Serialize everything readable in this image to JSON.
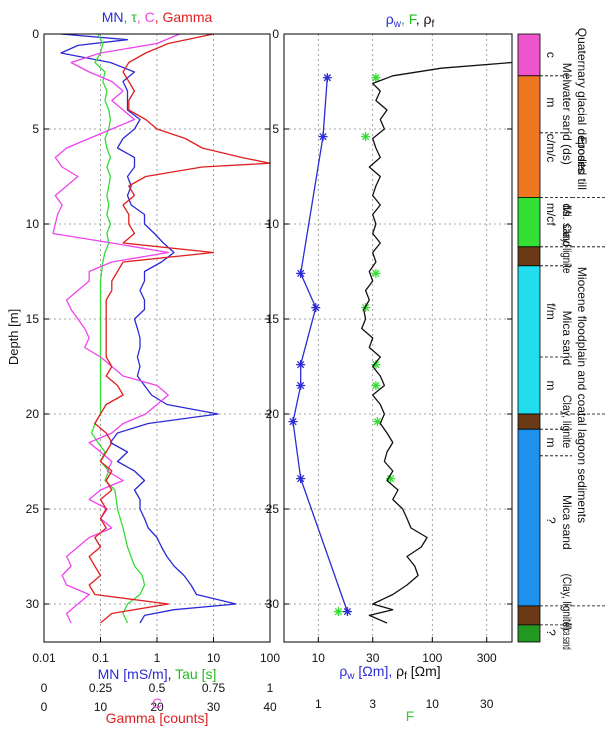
{
  "colors": {
    "blue": "#2b2bd6",
    "green": "#33dd33",
    "magenta": "#ee44ee",
    "red": "#e02020",
    "black": "#111111",
    "grid": "#8a8a8a",
    "dark_blue_text": "#2222aa"
  },
  "chart_data": [
    {
      "type": "line",
      "panel": "left",
      "title_parts": [
        "MN",
        ", τ",
        ", C",
        ", Gamma"
      ],
      "ylabel": "Depth [m]",
      "ylim": [
        0,
        32
      ],
      "y_ticks": [
        0,
        5,
        10,
        15,
        20,
        25,
        30
      ],
      "x_axes": [
        {
          "label_parts": [
            "MN [mS/m]",
            ", ",
            "Tau [s]"
          ],
          "scale": "log",
          "range": [
            0.01,
            100
          ],
          "ticks": [
            "0.01",
            "0.1",
            "1",
            "10",
            "100"
          ]
        },
        {
          "label": "C",
          "scale": "linear",
          "range": [
            0,
            1
          ],
          "ticks": [
            "0",
            "0.25",
            "0.5",
            "0.75",
            "1"
          ]
        },
        {
          "label": "Gamma [counts]",
          "scale": "linear",
          "range": [
            0,
            40
          ],
          "ticks": [
            "0",
            "10",
            "20",
            "30",
            "40"
          ]
        }
      ],
      "grid": true,
      "series": [
        {
          "key": "MN",
          "axis": 0,
          "depth": [
            0,
            0.3,
            0.6,
            1.0,
            1.5,
            2.0,
            2.5,
            3.0,
            3.5,
            4.0,
            4.5,
            5.0,
            5.5,
            6.0,
            6.5,
            7.0,
            7.5,
            8.0,
            8.5,
            9.0,
            9.5,
            10.0,
            10.5,
            11.0,
            11.5,
            12.0,
            12.5,
            13.0,
            13.5,
            14.0,
            14.5,
            15.0,
            15.5,
            16.0,
            16.5,
            17.0,
            17.5,
            18.0,
            18.5,
            19.0,
            19.5,
            20.0,
            20.5,
            21.0,
            21.5,
            22.0,
            22.5,
            23.0,
            23.5,
            24.0,
            24.5,
            25.0,
            25.5,
            26.0,
            26.5,
            27.0,
            27.5,
            28.0,
            28.5,
            29.0,
            29.5,
            30.0,
            30.3,
            30.6,
            31.0
          ],
          "values": [
            0.02,
            0.3,
            0.04,
            0.02,
            0.15,
            0.4,
            0.25,
            0.3,
            0.3,
            0.3,
            0.5,
            0.4,
            0.25,
            0.2,
            0.4,
            0.4,
            0.3,
            0.35,
            0.3,
            0.35,
            0.6,
            0.6,
            0.9,
            1.3,
            2.0,
            1.2,
            0.6,
            0.6,
            0.5,
            0.6,
            0.6,
            0.4,
            0.45,
            0.5,
            0.5,
            0.45,
            0.5,
            0.45,
            0.6,
            0.8,
            1.5,
            12.0,
            0.7,
            0.2,
            0.15,
            0.3,
            0.2,
            0.4,
            0.6,
            0.4,
            0.5,
            0.5,
            0.6,
            0.7,
            1.0,
            1.2,
            1.5,
            2.0,
            3.0,
            4.0,
            5.0,
            25.0,
            2.0,
            0.6,
            0.5
          ]
        },
        {
          "key": "Tau",
          "axis": 0,
          "depth": [
            0,
            0.5,
            1.0,
            1.5,
            2.0,
            2.5,
            3.0,
            3.5,
            4.0,
            4.5,
            5.0,
            5.5,
            6.0,
            6.5,
            7.0,
            7.5,
            8.0,
            8.5,
            9.0,
            9.5,
            10.0,
            10.5,
            11.0,
            11.5,
            12.0,
            13.0,
            14.0,
            15.0,
            16.0,
            17.0,
            18.0,
            19.0,
            20.0,
            20.5,
            21.0,
            21.5,
            22.0,
            22.5,
            23.0,
            23.5,
            24.0,
            25.0,
            26.0,
            27.0,
            28.0,
            28.5,
            29.0,
            29.5,
            30.0,
            30.5,
            31.0
          ],
          "values": [
            0.09,
            0.11,
            0.1,
            0.08,
            0.12,
            0.11,
            0.13,
            0.12,
            0.14,
            0.15,
            0.14,
            0.12,
            0.13,
            0.15,
            0.13,
            0.15,
            0.14,
            0.13,
            0.14,
            0.13,
            0.15,
            0.13,
            0.14,
            0.12,
            0.11,
            0.1,
            0.1,
            0.1,
            0.1,
            0.1,
            0.1,
            0.1,
            0.1,
            0.08,
            0.07,
            0.09,
            0.12,
            0.1,
            0.14,
            0.12,
            0.18,
            0.2,
            0.25,
            0.3,
            0.4,
            0.55,
            0.6,
            0.5,
            0.3,
            0.25,
            0.3
          ]
        },
        {
          "key": "C",
          "axis": 1,
          "depth": [
            0,
            0.5,
            1.0,
            1.5,
            2.0,
            2.5,
            3.0,
            3.5,
            4.0,
            4.5,
            5.0,
            5.5,
            6.0,
            6.5,
            7.0,
            7.5,
            8.0,
            8.5,
            9.0,
            9.5,
            10.0,
            10.5,
            11.0,
            11.5,
            12.0,
            12.5,
            13.0,
            13.5,
            14.0,
            14.5,
            15.0,
            15.5,
            16.0,
            16.5,
            17.0,
            17.5,
            18.0,
            18.5,
            19.0,
            19.5,
            20.0,
            20.5,
            21.0,
            21.5,
            22.0,
            22.5,
            23.0,
            23.5,
            24.0,
            24.5,
            25.0,
            25.5,
            26.0,
            26.5,
            27.0,
            27.5,
            28.0,
            28.5,
            29.0,
            29.5,
            30.0,
            30.5,
            31.0
          ],
          "values": [
            0.6,
            0.5,
            0.25,
            0.12,
            0.2,
            0.3,
            0.35,
            0.3,
            0.35,
            0.4,
            0.3,
            0.2,
            0.1,
            0.05,
            0.08,
            0.15,
            0.1,
            0.05,
            0.08,
            0.06,
            0.05,
            0.04,
            0.3,
            0.55,
            0.3,
            0.2,
            0.2,
            0.15,
            0.1,
            0.12,
            0.15,
            0.18,
            0.2,
            0.18,
            0.25,
            0.3,
            0.35,
            0.5,
            0.55,
            0.5,
            0.45,
            0.35,
            0.3,
            0.2,
            0.25,
            0.3,
            0.28,
            0.35,
            0.25,
            0.2,
            0.28,
            0.25,
            0.3,
            0.2,
            0.15,
            0.1,
            0.12,
            0.08,
            0.1,
            0.2,
            0.15,
            0.1,
            0.12
          ]
        },
        {
          "key": "Gamma",
          "axis": 2,
          "depth": [
            0,
            0.5,
            1.0,
            1.5,
            2.0,
            2.5,
            3.0,
            3.5,
            4.0,
            4.5,
            5.0,
            5.5,
            6.0,
            6.5,
            6.8,
            7.0,
            7.5,
            8.0,
            8.5,
            9.0,
            9.5,
            10.0,
            10.5,
            11.0,
            11.5,
            12.0,
            12.5,
            13.0,
            13.5,
            14.0,
            14.5,
            15.0,
            15.5,
            16.0,
            16.5,
            17.0,
            17.5,
            18.0,
            18.5,
            19.0,
            19.5,
            20.0,
            20.5,
            21.0,
            21.5,
            22.0,
            22.5,
            23.0,
            23.5,
            24.0,
            24.5,
            25.0,
            25.5,
            26.0,
            26.5,
            27.0,
            27.5,
            28.0,
            28.5,
            29.0,
            29.5,
            30.0,
            30.5,
            31.0
          ],
          "values": [
            30,
            22,
            18,
            15,
            14,
            15,
            16,
            15,
            15,
            18,
            20,
            25,
            28,
            35,
            40,
            28,
            18,
            15,
            16,
            14,
            15,
            15,
            16,
            14,
            30,
            14,
            13,
            12,
            12,
            11,
            11,
            11,
            11,
            11,
            11,
            11,
            12,
            11,
            13,
            14,
            11,
            10,
            9,
            11,
            12,
            11,
            10,
            12,
            11,
            12,
            10,
            11,
            10,
            11,
            9,
            10,
            8,
            9,
            10,
            8,
            9,
            22,
            12,
            10
          ]
        }
      ]
    },
    {
      "type": "line",
      "panel": "right",
      "title_parts": [
        "ρ",
        "w",
        ", F",
        ", ρ",
        "f"
      ],
      "ylim": [
        0,
        32
      ],
      "y_ticks": [
        0,
        5,
        10,
        15,
        20,
        25,
        30
      ],
      "x_axes": [
        {
          "label_parts": [
            "ρ",
            "w",
            " [Ωm],  ",
            "ρ",
            "f",
            " [Ωm]"
          ],
          "scale": "log",
          "range": [
            5,
            500
          ],
          "ticks": [
            "10",
            "30",
            "100",
            "300"
          ]
        },
        {
          "label": "F",
          "scale": "log",
          "range": [
            0.5,
            50
          ],
          "ticks": [
            "1",
            "3",
            "10",
            "30"
          ]
        }
      ],
      "grid": true,
      "series": [
        {
          "key": "rho_w",
          "axis": 0,
          "marker": "asterisk",
          "depth": [
            2.3,
            5.4,
            12.6,
            14.4,
            17.4,
            18.5,
            20.4,
            23.4,
            30.4
          ],
          "values": [
            12,
            11,
            7,
            9.5,
            7,
            7,
            6,
            7,
            18
          ]
        },
        {
          "key": "F",
          "axis": 1,
          "marker": "asterisk",
          "depth": [
            2.3,
            5.4,
            12.6,
            14.4,
            17.4,
            18.5,
            20.4,
            23.4,
            30.4
          ],
          "values": [
            3.2,
            2.6,
            3.2,
            2.6,
            3.2,
            3.2,
            3.3,
            4.3,
            1.5
          ]
        },
        {
          "key": "rho_f",
          "axis": 0,
          "depth": [
            1.5,
            1.8,
            2.2,
            2.6,
            3.0,
            3.5,
            4.0,
            4.5,
            5.0,
            5.5,
            6.0,
            6.5,
            7.0,
            7.5,
            8.0,
            8.5,
            9.0,
            9.5,
            10.0,
            10.5,
            11.0,
            11.5,
            12.0,
            12.5,
            13.0,
            13.5,
            14.0,
            14.5,
            15.0,
            15.5,
            16.0,
            16.5,
            17.0,
            17.5,
            18.0,
            18.5,
            19.0,
            19.5,
            20.0,
            20.5,
            21.0,
            21.5,
            22.0,
            22.5,
            23.0,
            23.5,
            24.0,
            24.5,
            25.0,
            25.5,
            26.0,
            26.5,
            27.0,
            27.5,
            28.0,
            28.5,
            29.0,
            29.5,
            30.0,
            30.3,
            30.6,
            31.0
          ],
          "values": [
            500,
            120,
            45,
            30,
            35,
            32,
            40,
            35,
            38,
            30,
            32,
            35,
            28,
            35,
            32,
            30,
            35,
            30,
            32,
            30,
            35,
            30,
            32,
            28,
            30,
            26,
            28,
            25,
            26,
            24,
            30,
            28,
            35,
            30,
            35,
            38,
            30,
            35,
            38,
            35,
            40,
            45,
            40,
            38,
            45,
            40,
            50,
            45,
            55,
            60,
            65,
            90,
            80,
            60,
            70,
            75,
            60,
            45,
            30,
            45,
            28,
            40
          ]
        }
      ]
    }
  ],
  "strata": {
    "layers": [
      {
        "top": 0,
        "bottom": 2.2,
        "color": "#ee55cc"
      },
      {
        "top": 2.2,
        "bottom": 8.6,
        "color": "#f07722"
      },
      {
        "top": 8.6,
        "bottom": 11.2,
        "color": "#33e033"
      },
      {
        "top": 11.2,
        "bottom": 12.2,
        "color": "#6a3a16"
      },
      {
        "top": 12.2,
        "bottom": 20.0,
        "color": "#22ddee"
      },
      {
        "top": 20.0,
        "bottom": 20.8,
        "color": "#6a3a16"
      },
      {
        "top": 20.8,
        "bottom": 30.1,
        "color": "#1e90ee"
      },
      {
        "top": 30.1,
        "bottom": 31.1,
        "color": "#6a3a16"
      },
      {
        "top": 31.1,
        "bottom": 32.0,
        "color": "#229922"
      }
    ],
    "inner_dividers": [
      2.2,
      5.2,
      8.6,
      11.2,
      12.2,
      17.0,
      20.0,
      20.8,
      22.2,
      30.1,
      31.1
    ],
    "outer_dividers": [
      8.6,
      11.2,
      20.0,
      30.1
    ],
    "codes": [
      {
        "text": "c",
        "depth": 1.1
      },
      {
        "text": "m",
        "depth": 3.6
      },
      {
        "text": "c/m/c",
        "depth": 6.0
      },
      {
        "text": "m/c",
        "depth": 9.4
      },
      {
        "text": "f",
        "depth": 10.0
      },
      {
        "text": "f/m",
        "depth": 14.6
      },
      {
        "text": "m",
        "depth": 18.5
      },
      {
        "text": "m",
        "depth": 21.5
      },
      {
        "text": "?",
        "depth": 25.6
      },
      {
        "text": "?",
        "depth": 31.5
      }
    ],
    "col1": [
      {
        "text": "Melwater sand (ds)",
        "top": 0.2,
        "bottom": 8.2
      },
      {
        "text": "ds",
        "top": 8.7,
        "bottom": 9.8
      },
      {
        "text": "Mi. sand",
        "top": 9.0,
        "bottom": 11.2
      },
      {
        "text": "Clay, lignite",
        "top": 10.0,
        "bottom": 12.6
      },
      {
        "text": "Mica sand",
        "top": 14.2,
        "bottom": 17.8
      },
      {
        "text": "Clay, lignite",
        "top": 19.0,
        "bottom": 21.8
      },
      {
        "text": "Mica sand",
        "top": 23.8,
        "bottom": 27.6
      },
      {
        "text": "(Clay, lignite)",
        "top": 28.4,
        "bottom": 31.4
      },
      {
        "text": "Mica sand",
        "top": 31.0,
        "bottom": 32.4
      }
    ],
    "col2": [
      {
        "text": "Quaternary glacial deposits",
        "top": -1.8,
        "bottom": 8.8
      },
      {
        "text": "Eroded till",
        "top": 5.3,
        "bottom": 8.3
      },
      {
        "text": "Miocene floodplain and coatal lagoon sediments",
        "top": 9.8,
        "bottom": 28.2
      }
    ]
  }
}
